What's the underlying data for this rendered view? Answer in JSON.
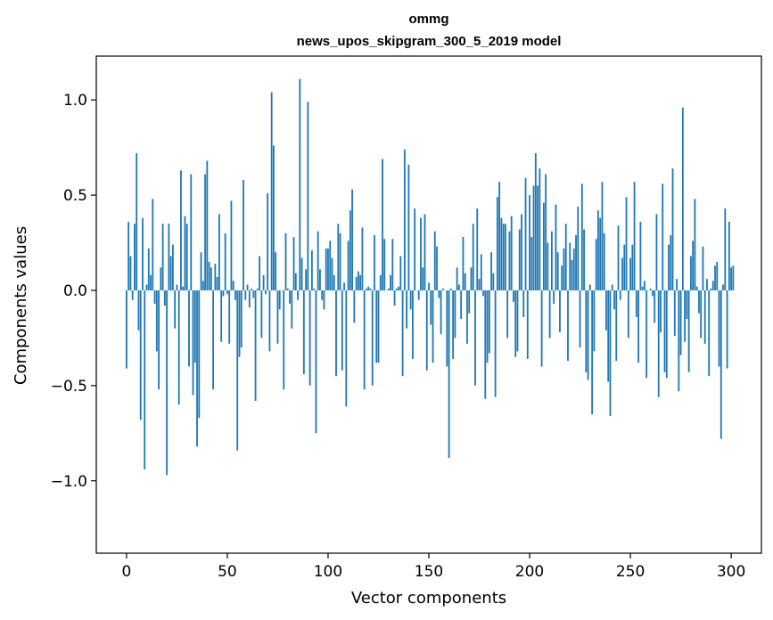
{
  "chart_data": {
    "type": "bar",
    "title": "ommg",
    "subtitle": "news_upos_skipgram_300_5_2019 model",
    "xlabel": "Vector components",
    "ylabel": "Components values",
    "xlim": [
      -15,
      315
    ],
    "ylim": [
      -1.38,
      1.23
    ],
    "xticks": [
      0,
      50,
      100,
      150,
      200,
      250,
      300
    ],
    "xtick_labels": [
      "0",
      "50",
      "100",
      "150",
      "200",
      "250",
      "300"
    ],
    "yticks": [
      -1.0,
      -0.5,
      0.0,
      0.5,
      1.0
    ],
    "ytick_labels": [
      "−1.0",
      "−0.5",
      "0.0",
      "0.5",
      "1.0"
    ],
    "grid": false,
    "bar_color": "#1f77b4",
    "values": [
      -0.41,
      0.36,
      0.18,
      -0.05,
      0.35,
      0.72,
      -0.21,
      -0.68,
      0.38,
      -0.94,
      0.03,
      0.22,
      0.08,
      0.48,
      -0.07,
      -0.32,
      -0.52,
      0.12,
      0.35,
      -0.08,
      -0.97,
      0.35,
      0.18,
      0.24,
      -0.2,
      0.03,
      -0.6,
      0.63,
      0.02,
      0.39,
      0.35,
      -0.4,
      0.61,
      -0.55,
      -0.38,
      -0.82,
      -0.67,
      0.2,
      0.05,
      0.61,
      0.68,
      0.15,
      0.12,
      -0.52,
      0.14,
      0.07,
      0.4,
      -0.27,
      -0.03,
      0.3,
      -0.02,
      -0.28,
      0.47,
      0.05,
      -0.05,
      -0.84,
      -0.35,
      -0.3,
      0.58,
      -0.05,
      0.03,
      -0.09,
      0.01,
      -0.04,
      -0.58,
      0.01,
      0.18,
      -0.25,
      0.08,
      -0.02,
      0.51,
      -0.32,
      1.04,
      0.76,
      0.2,
      -0.28,
      -0.1,
      0.0,
      -0.52,
      0.3,
      0.01,
      -0.07,
      -0.2,
      0.28,
      0.09,
      -0.05,
      1.11,
      0.17,
      -0.44,
      0.11,
      0.99,
      -0.5,
      0.21,
      0.01,
      -0.75,
      0.31,
      0.11,
      -0.05,
      -0.1,
      0.22,
      0.22,
      0.26,
      0.17,
      0.08,
      -0.45,
      0.35,
      0.3,
      -0.42,
      0.04,
      -0.61,
      0.26,
      0.42,
      0.53,
      -0.17,
      0.07,
      0.1,
      0.08,
      0.33,
      -0.52,
      0.01,
      0.02,
      0.01,
      -0.5,
      0.29,
      -0.38,
      -0.38,
      0.08,
      0.69,
      0.27,
      0.0,
      0.01,
      0.08,
      0.27,
      -0.08,
      0.01,
      0.02,
      0.18,
      -0.45,
      0.74,
      -0.2,
      0.66,
      -0.1,
      -0.36,
      0.43,
      0.0,
      -0.05,
      0.38,
      0.12,
      0.4,
      -0.42,
      0.04,
      -0.18,
      -0.38,
      0.31,
      0.23,
      -0.04,
      -0.23,
      0.01,
      0.0,
      -0.4,
      -0.88,
      0.01,
      -0.36,
      -0.25,
      0.12,
      0.03,
      -0.15,
      0.28,
      0.09,
      -0.28,
      -0.12,
      0.12,
      0.35,
      -0.5,
      0.43,
      0.06,
      0.19,
      -0.03,
      -0.57,
      -0.38,
      -0.33,
      0.2,
      0.09,
      -0.56,
      0.49,
      0.57,
      0.38,
      0.35,
      0.35,
      -0.25,
      0.31,
      0.39,
      -0.06,
      -0.35,
      -0.32,
      0.32,
      0.4,
      -0.14,
      0.59,
      -0.36,
      0.5,
      0.28,
      0.55,
      0.72,
      0.55,
      0.64,
      -0.4,
      0.46,
      0.61,
      0.25,
      -0.25,
      0.31,
      -0.07,
      0.45,
      0.2,
      -0.22,
      0.13,
      0.22,
      0.35,
      -0.37,
      0.25,
      0.16,
      0.22,
      0.29,
      0.44,
      -0.3,
      0.56,
      0.32,
      -0.43,
      -0.47,
      0.03,
      -0.65,
      -0.32,
      0.27,
      0.42,
      0.38,
      0.57,
      0.3,
      -0.21,
      -0.48,
      -0.66,
      0.03,
      -0.1,
      -0.37,
      0.34,
      -0.05,
      0.17,
      0.24,
      0.49,
      -0.25,
      0.17,
      0.24,
      0.57,
      -0.14,
      -0.38,
      0.36,
      0.02,
      0.05,
      -0.46,
      0.0,
      0.01,
      -0.03,
      -0.17,
      0.4,
      -0.56,
      -0.22,
      0.56,
      -0.43,
      -0.46,
      0.24,
      0.29,
      0.64,
      -0.24,
      0.06,
      -0.53,
      -0.34,
      0.96,
      -0.27,
      -0.15,
      -0.43,
      0.18,
      0.26,
      0.48,
      0.02,
      -0.12,
      -0.25,
      0.23,
      -0.28,
      0.06,
      -0.45,
      0.01,
      0.05,
      0.13,
      0.15,
      -0.4,
      -0.78,
      0.03,
      0.43,
      -0.41,
      0.36,
      0.12,
      0.13
    ]
  }
}
